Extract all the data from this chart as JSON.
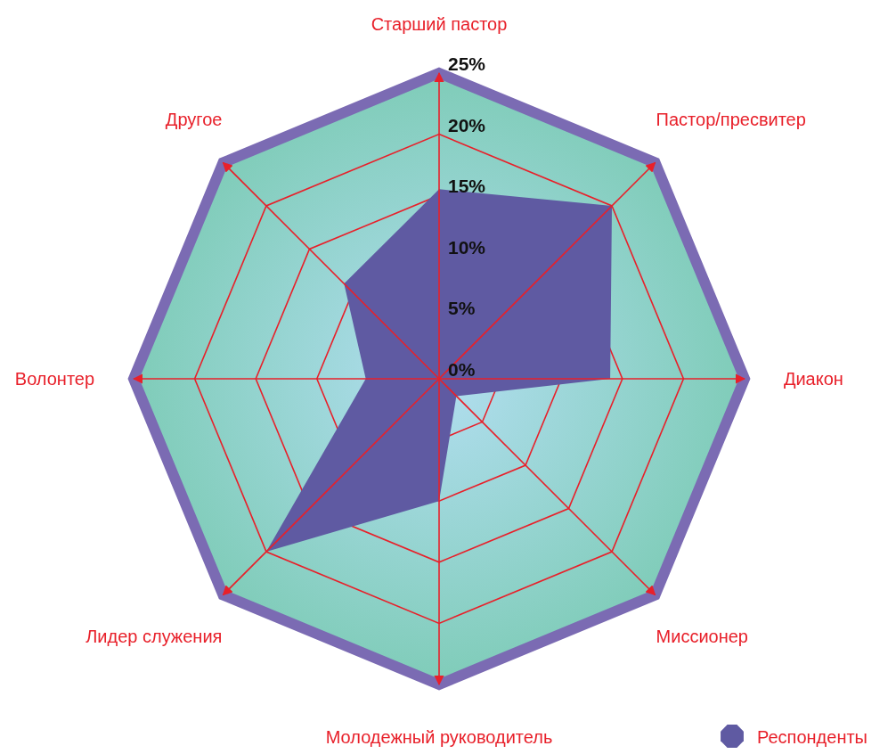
{
  "chart_data": {
    "type": "radar",
    "categories": [
      "Старший пастор",
      "Пастор/пресвитер",
      "Диакон",
      "Миссионер",
      "Молодежный руководитель",
      "Лидер служения",
      "Волонтер",
      "Другое"
    ],
    "series": [
      {
        "name": "Респонденты",
        "color": "#5f5aa2",
        "values": [
          15.5,
          20,
          14,
          2,
          10,
          20,
          6,
          11
        ]
      }
    ],
    "ylim": [
      0,
      25
    ],
    "yticks": [
      {
        "value": 0,
        "label": "0%"
      },
      {
        "value": 5,
        "label": "5%"
      },
      {
        "value": 10,
        "label": "10%"
      },
      {
        "value": 15,
        "label": "15%"
      },
      {
        "value": 20,
        "label": "20%"
      },
      {
        "value": 25,
        "label": "25%"
      }
    ],
    "grid": true,
    "legend": "bottom right"
  }
}
